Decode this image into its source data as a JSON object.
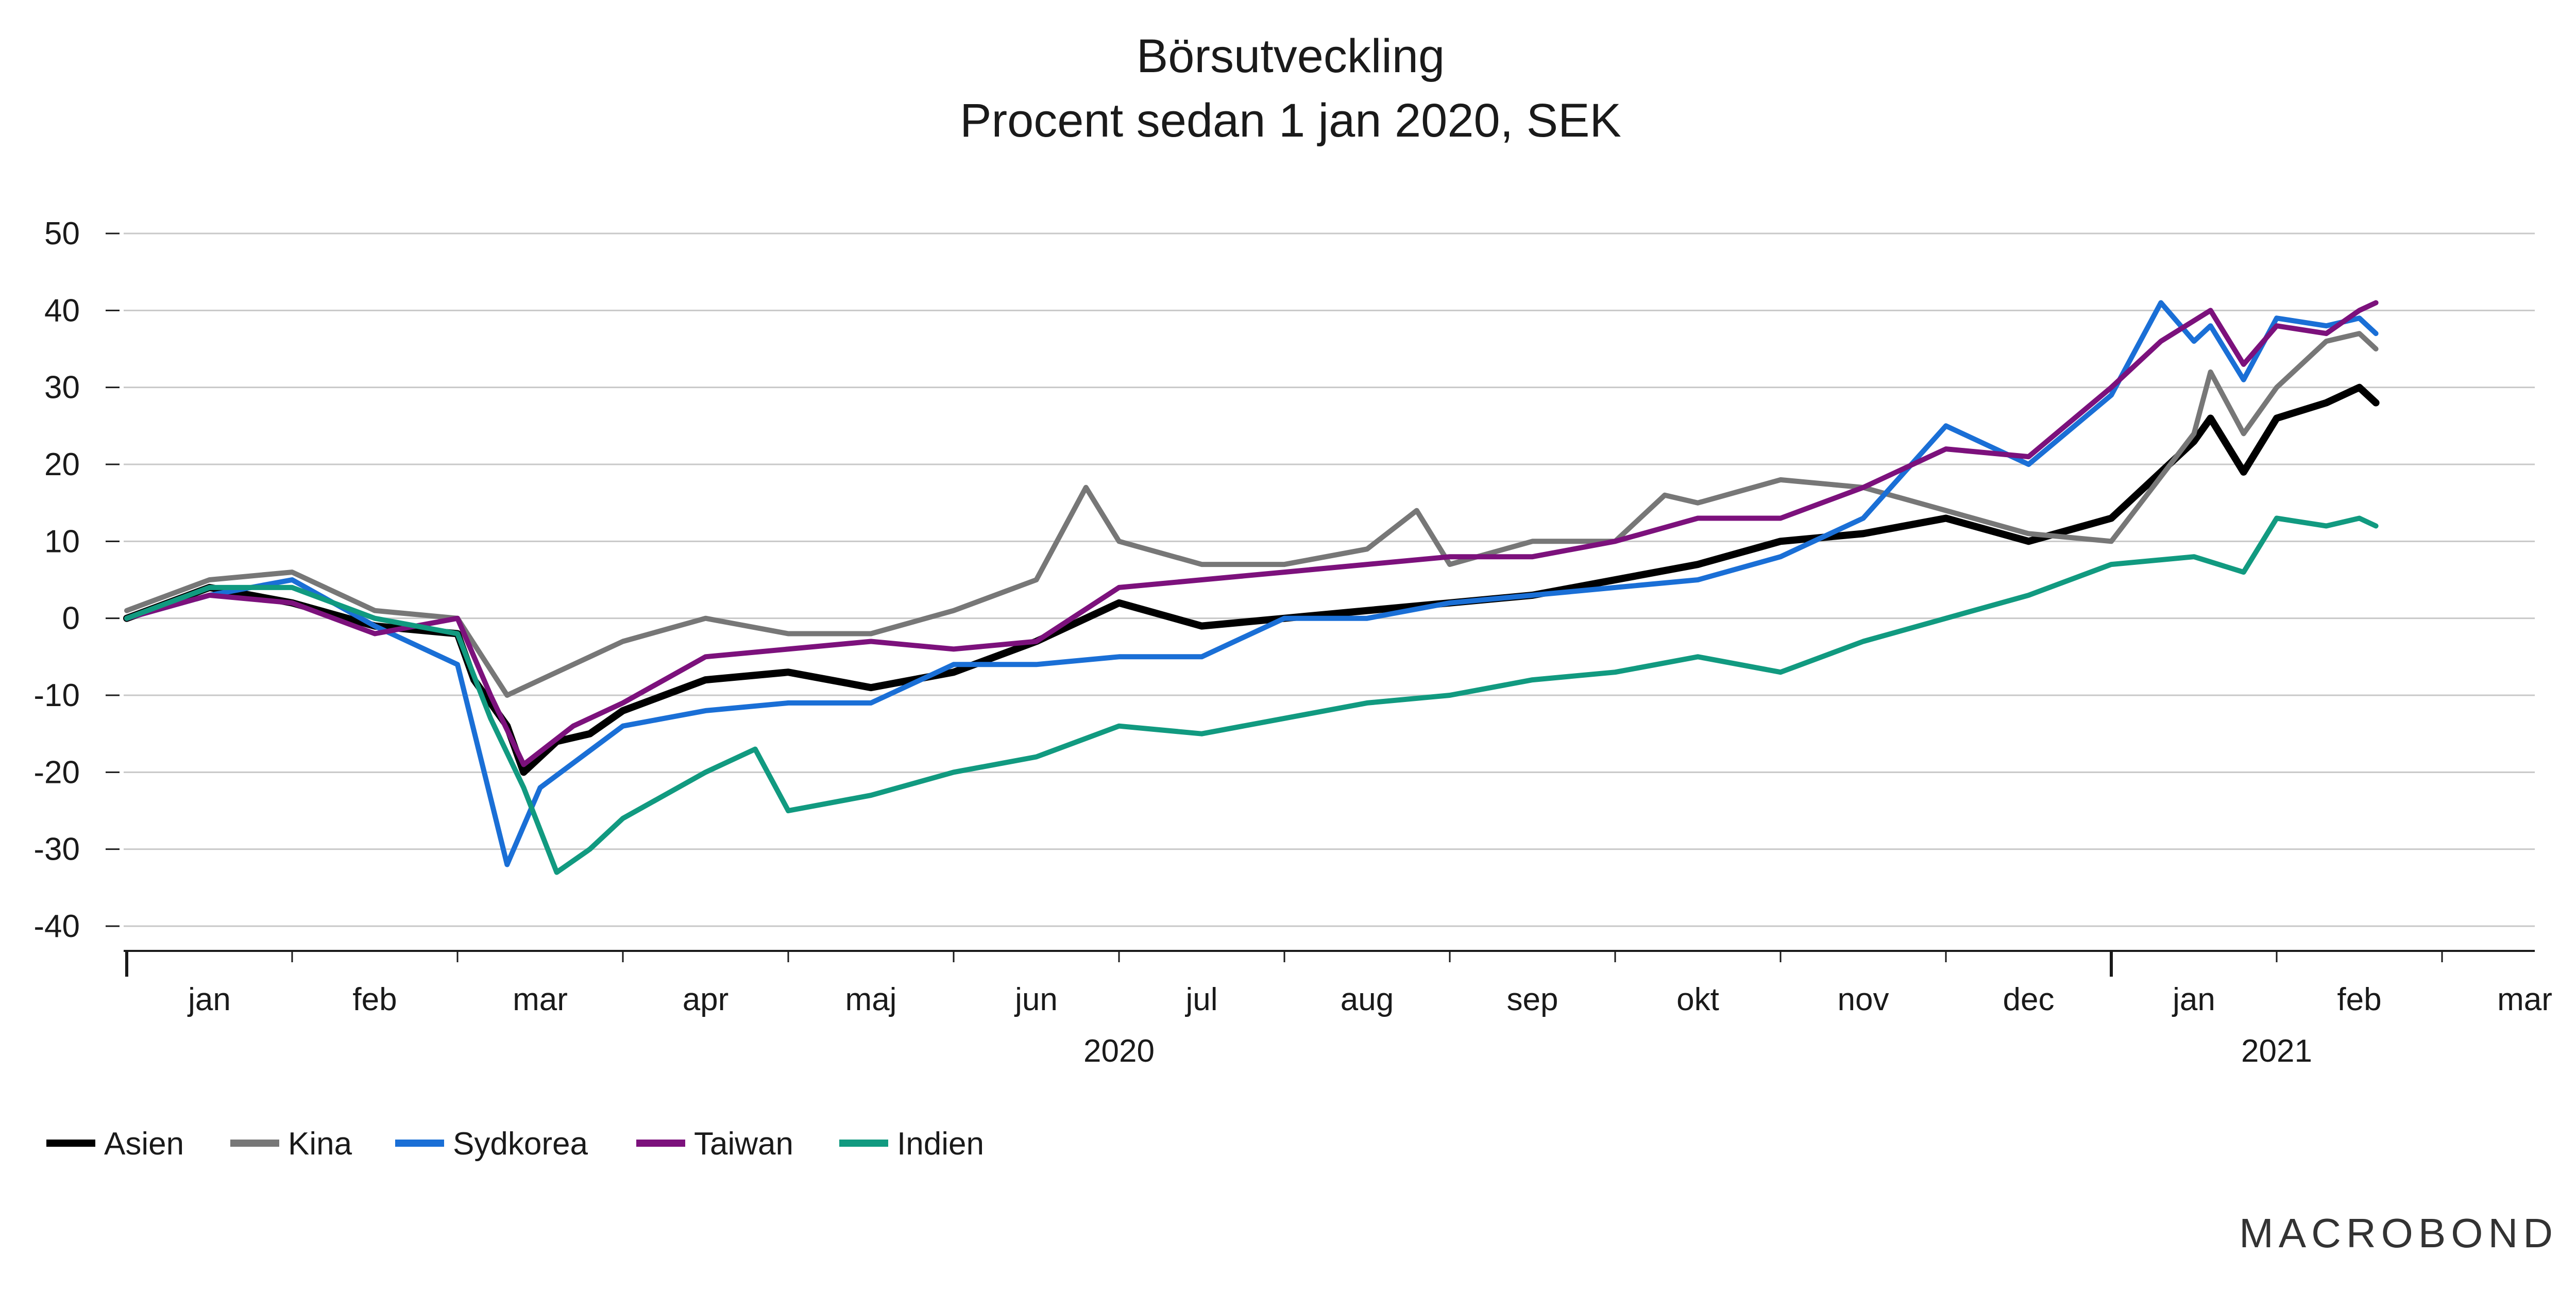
{
  "chart_data": {
    "type": "line",
    "title": "Börsutveckling",
    "subtitle": "Procent sedan 1 jan 2020, SEK",
    "xlabel": "",
    "ylabel": "",
    "ylim": [
      -40,
      50
    ],
    "y_ticks": [
      50,
      40,
      30,
      20,
      10,
      0,
      -10,
      -20,
      -30,
      -40
    ],
    "x_ticks": [
      "jan",
      "feb",
      "mar",
      "apr",
      "maj",
      "jun",
      "jul",
      "aug",
      "sep",
      "okt",
      "nov",
      "dec",
      "jan",
      "feb",
      "mar"
    ],
    "year_labels": [
      "2020",
      "2021"
    ],
    "grid": true,
    "legend_position": "bottom-left",
    "x_unit": "months since 1 jan 2020",
    "series": [
      {
        "name": "Asien",
        "color": "#000000",
        "points": [
          [
            0,
            0
          ],
          [
            0.5,
            4
          ],
          [
            1,
            2
          ],
          [
            1.5,
            -1
          ],
          [
            2,
            -2
          ],
          [
            2.1,
            -8
          ],
          [
            2.3,
            -14
          ],
          [
            2.4,
            -20
          ],
          [
            2.6,
            -16
          ],
          [
            2.8,
            -15
          ],
          [
            3,
            -12
          ],
          [
            3.5,
            -8
          ],
          [
            4,
            -7
          ],
          [
            4.5,
            -9
          ],
          [
            5,
            -7
          ],
          [
            5.5,
            -3
          ],
          [
            6,
            2
          ],
          [
            6.5,
            -1
          ],
          [
            7,
            0
          ],
          [
            7.5,
            1
          ],
          [
            8,
            2
          ],
          [
            8.5,
            3
          ],
          [
            9,
            5
          ],
          [
            9.5,
            7
          ],
          [
            10,
            10
          ],
          [
            10.5,
            11
          ],
          [
            11,
            13
          ],
          [
            11.5,
            10
          ],
          [
            12,
            13
          ],
          [
            12.5,
            23
          ],
          [
            12.6,
            26
          ],
          [
            12.8,
            19
          ],
          [
            13,
            26
          ],
          [
            13.3,
            28
          ],
          [
            13.5,
            30
          ],
          [
            13.6,
            28
          ]
        ]
      },
      {
        "name": "Kina",
        "color": "#777777",
        "points": [
          [
            0,
            1
          ],
          [
            0.5,
            5
          ],
          [
            1,
            6
          ],
          [
            1.5,
            1
          ],
          [
            2,
            0
          ],
          [
            2.3,
            -10
          ],
          [
            2.5,
            -8
          ],
          [
            3,
            -3
          ],
          [
            3.5,
            0
          ],
          [
            4,
            -2
          ],
          [
            4.5,
            -2
          ],
          [
            5,
            1
          ],
          [
            5.5,
            5
          ],
          [
            5.8,
            17
          ],
          [
            6,
            10
          ],
          [
            6.5,
            7
          ],
          [
            7,
            7
          ],
          [
            7.5,
            9
          ],
          [
            7.8,
            14
          ],
          [
            8,
            7
          ],
          [
            8.5,
            10
          ],
          [
            9,
            10
          ],
          [
            9.3,
            16
          ],
          [
            9.5,
            15
          ],
          [
            10,
            18
          ],
          [
            10.5,
            17
          ],
          [
            11,
            14
          ],
          [
            11.5,
            11
          ],
          [
            12,
            10
          ],
          [
            12.5,
            24
          ],
          [
            12.6,
            32
          ],
          [
            12.8,
            24
          ],
          [
            13,
            30
          ],
          [
            13.3,
            36
          ],
          [
            13.5,
            37
          ],
          [
            13.6,
            35
          ]
        ]
      },
      {
        "name": "Sydkorea",
        "color": "#1a6fd6",
        "points": [
          [
            0,
            0
          ],
          [
            0.5,
            3
          ],
          [
            1,
            5
          ],
          [
            1.5,
            -1
          ],
          [
            2,
            -6
          ],
          [
            2.3,
            -32
          ],
          [
            2.5,
            -22
          ],
          [
            3,
            -14
          ],
          [
            3.5,
            -12
          ],
          [
            4,
            -11
          ],
          [
            4.5,
            -11
          ],
          [
            5,
            -6
          ],
          [
            5.5,
            -6
          ],
          [
            6,
            -5
          ],
          [
            6.5,
            -5
          ],
          [
            7,
            0
          ],
          [
            7.5,
            0
          ],
          [
            8,
            2
          ],
          [
            8.5,
            3
          ],
          [
            9,
            4
          ],
          [
            9.5,
            5
          ],
          [
            10,
            8
          ],
          [
            10.5,
            13
          ],
          [
            11,
            25
          ],
          [
            11.5,
            20
          ],
          [
            12,
            29
          ],
          [
            12.3,
            41
          ],
          [
            12.5,
            36
          ],
          [
            12.6,
            38
          ],
          [
            12.8,
            31
          ],
          [
            13,
            39
          ],
          [
            13.3,
            38
          ],
          [
            13.5,
            39
          ],
          [
            13.6,
            37
          ]
        ]
      },
      {
        "name": "Taiwan",
        "color": "#7c117c",
        "points": [
          [
            0,
            0
          ],
          [
            0.5,
            3
          ],
          [
            1,
            2
          ],
          [
            1.5,
            -2
          ],
          [
            2,
            0
          ],
          [
            2.2,
            -10
          ],
          [
            2.4,
            -19
          ],
          [
            2.7,
            -14
          ],
          [
            3,
            -11
          ],
          [
            3.5,
            -5
          ],
          [
            4,
            -4
          ],
          [
            4.5,
            -3
          ],
          [
            5,
            -4
          ],
          [
            5.5,
            -3
          ],
          [
            6,
            4
          ],
          [
            6.5,
            5
          ],
          [
            7,
            6
          ],
          [
            7.5,
            7
          ],
          [
            8,
            8
          ],
          [
            8.5,
            8
          ],
          [
            9,
            10
          ],
          [
            9.5,
            13
          ],
          [
            10,
            13
          ],
          [
            10.5,
            17
          ],
          [
            11,
            22
          ],
          [
            11.5,
            21
          ],
          [
            12,
            30
          ],
          [
            12.3,
            36
          ],
          [
            12.6,
            40
          ],
          [
            12.8,
            33
          ],
          [
            13,
            38
          ],
          [
            13.3,
            37
          ],
          [
            13.5,
            40
          ],
          [
            13.6,
            41
          ]
        ]
      },
      {
        "name": "Indien",
        "color": "#119a80",
        "points": [
          [
            0,
            0
          ],
          [
            0.5,
            4
          ],
          [
            1,
            4
          ],
          [
            1.5,
            0
          ],
          [
            2,
            -2
          ],
          [
            2.2,
            -13
          ],
          [
            2.4,
            -22
          ],
          [
            2.6,
            -33
          ],
          [
            2.8,
            -30
          ],
          [
            3,
            -26
          ],
          [
            3.5,
            -20
          ],
          [
            3.8,
            -17
          ],
          [
            4,
            -25
          ],
          [
            4.5,
            -23
          ],
          [
            5,
            -20
          ],
          [
            5.5,
            -18
          ],
          [
            6,
            -14
          ],
          [
            6.5,
            -15
          ],
          [
            7,
            -13
          ],
          [
            7.5,
            -11
          ],
          [
            8,
            -10
          ],
          [
            8.5,
            -8
          ],
          [
            9,
            -7
          ],
          [
            9.5,
            -5
          ],
          [
            10,
            -7
          ],
          [
            10.5,
            -3
          ],
          [
            11,
            0
          ],
          [
            11.5,
            3
          ],
          [
            12,
            7
          ],
          [
            12.5,
            8
          ],
          [
            12.8,
            6
          ],
          [
            13,
            13
          ],
          [
            13.3,
            12
          ],
          [
            13.5,
            13
          ],
          [
            13.6,
            12
          ]
        ]
      }
    ]
  },
  "branding": {
    "logo_text": "MACROBOND"
  }
}
